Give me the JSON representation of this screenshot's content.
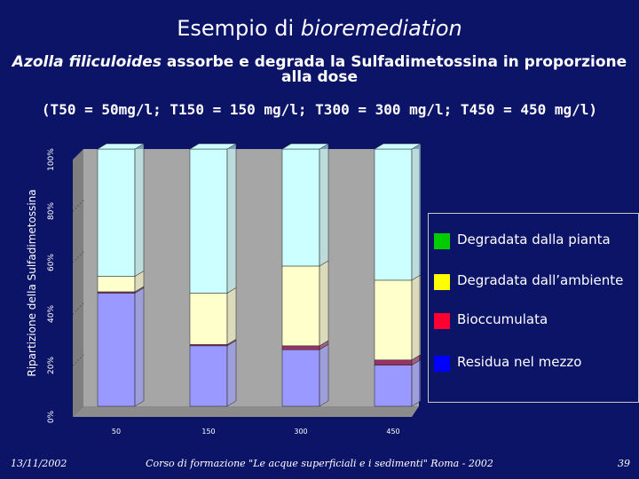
{
  "slide": {
    "title_normal": "Esempio di ",
    "title_italic": "bioremediation",
    "subtitle_italic": "Azolla filiculoides",
    "subtitle_rest": " assorbe e degrada la Sulfadimetossina in proporzione alla dose",
    "subtitle2": "(T50 = 50mg/l; T150 = 150 mg/l; T300 = 300 mg/l; T450 = 450 mg/l)"
  },
  "footer": {
    "date": "13/11/2002",
    "course": "Corso di formazione \"Le acque superficiali e i sedimenti\" Roma - 2002",
    "page": "39"
  },
  "chart_data": {
    "type": "bar",
    "stacked": true,
    "percent": true,
    "categories": [
      "50",
      "150",
      "300",
      "450"
    ],
    "ylabel": "Ripartizione della Sulfadimetossina",
    "ylim": [
      0,
      100
    ],
    "yticks": [
      "0%",
      "20%",
      "40%",
      "60%",
      "80%",
      "100%"
    ],
    "series": [
      {
        "name": "Residua nel mezzo",
        "color": "#9999ff",
        "values": [
          44.0,
          23.5,
          22.0,
          16.0
        ]
      },
      {
        "name": "Bioccumulata",
        "color": "#993366",
        "values": [
          0.5,
          0.5,
          1.5,
          2.0
        ]
      },
      {
        "name": "Degradata dall’ambiente",
        "color": "#ffffcc",
        "values": [
          6.0,
          20.0,
          31.0,
          31.0
        ]
      },
      {
        "name": "Degradata dalla pianta",
        "color": "#ccffff",
        "values": [
          49.5,
          56.0,
          45.5,
          51.0
        ]
      }
    ],
    "legend": {
      "position": "right",
      "items": [
        {
          "label": "Degradata dalla pianta",
          "color": "#00cc00"
        },
        {
          "label": "Degradata dall’ambiente",
          "color": "#ffff00"
        },
        {
          "label": "Bioccumulata",
          "color": "#ff0033"
        },
        {
          "label": "Residua nel mezzo",
          "color": "#0000ff"
        }
      ]
    }
  }
}
